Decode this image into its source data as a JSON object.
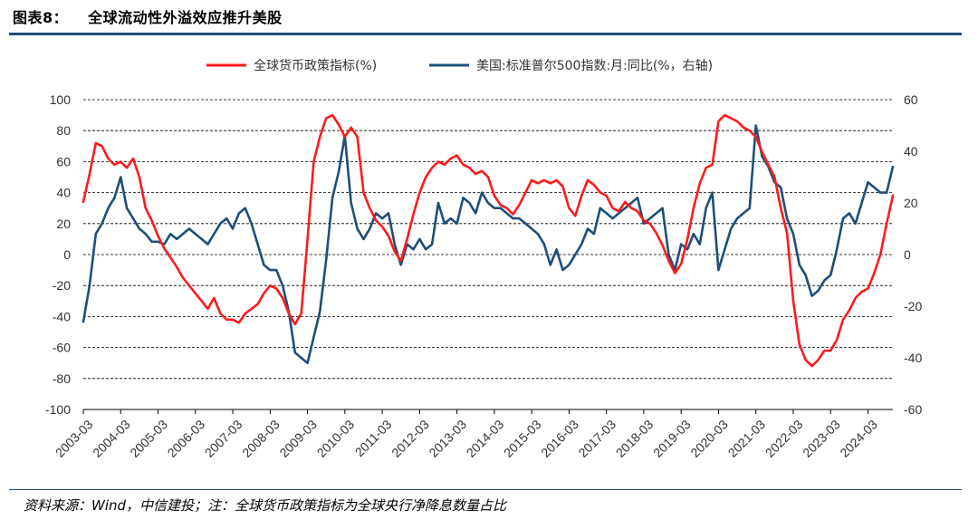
{
  "figure": {
    "number": "图表8：",
    "title": "全球流动性外溢效应推升美股",
    "source": "资料来源：Wind，中信建投；注：全球货币政策指标为全球央行净降息数量占比"
  },
  "chart_data": {
    "type": "line",
    "x_ticks": [
      "2003-03",
      "2004-03",
      "2005-03",
      "2006-03",
      "2007-03",
      "2008-03",
      "2009-03",
      "2010-03",
      "2011-03",
      "2012-03",
      "2013-03",
      "2014-03",
      "2015-03",
      "2016-03",
      "2017-03",
      "2018-03",
      "2019-03",
      "2020-03",
      "2021-03",
      "2022-03",
      "2023-03",
      "2024-03"
    ],
    "x_range": [
      "2003-03",
      "2024-11"
    ],
    "y_left": {
      "range": [
        -100,
        100
      ],
      "ticks": [
        100,
        80,
        60,
        40,
        20,
        0,
        -20,
        -40,
        -60,
        -80,
        -100
      ]
    },
    "y_right": {
      "range": [
        -60,
        60
      ],
      "ticks": [
        60,
        40,
        20,
        0,
        -20,
        -40,
        -60
      ]
    },
    "grid": "horizontal-dashed",
    "legend_position": "top",
    "series": [
      {
        "name": "全球货币政策指标(%)",
        "axis": "left",
        "color": "#ff1a1a",
        "points": [
          [
            "2003-03",
            34
          ],
          [
            "2003-05",
            52
          ],
          [
            "2003-07",
            72
          ],
          [
            "2003-09",
            70
          ],
          [
            "2003-11",
            62
          ],
          [
            "2004-01",
            58
          ],
          [
            "2004-03",
            60
          ],
          [
            "2004-05",
            56
          ],
          [
            "2004-07",
            62
          ],
          [
            "2004-09",
            50
          ],
          [
            "2004-11",
            30
          ],
          [
            "2005-01",
            22
          ],
          [
            "2005-03",
            12
          ],
          [
            "2005-05",
            4
          ],
          [
            "2005-07",
            -2
          ],
          [
            "2005-09",
            -8
          ],
          [
            "2005-11",
            -15
          ],
          [
            "2006-01",
            -20
          ],
          [
            "2006-03",
            -25
          ],
          [
            "2006-05",
            -30
          ],
          [
            "2006-07",
            -35
          ],
          [
            "2006-09",
            -28
          ],
          [
            "2006-11",
            -38
          ],
          [
            "2007-01",
            -42
          ],
          [
            "2007-03",
            -42
          ],
          [
            "2007-05",
            -44
          ],
          [
            "2007-07",
            -38
          ],
          [
            "2007-09",
            -35
          ],
          [
            "2007-11",
            -32
          ],
          [
            "2008-01",
            -25
          ],
          [
            "2008-03",
            -20
          ],
          [
            "2008-05",
            -22
          ],
          [
            "2008-07",
            -28
          ],
          [
            "2008-09",
            -38
          ],
          [
            "2008-11",
            -45
          ],
          [
            "2009-01",
            -38
          ],
          [
            "2009-03",
            10
          ],
          [
            "2009-05",
            60
          ],
          [
            "2009-07",
            76
          ],
          [
            "2009-09",
            88
          ],
          [
            "2009-11",
            90
          ],
          [
            "2010-01",
            84
          ],
          [
            "2010-03",
            76
          ],
          [
            "2010-05",
            82
          ],
          [
            "2010-07",
            76
          ],
          [
            "2010-09",
            40
          ],
          [
            "2010-11",
            30
          ],
          [
            "2011-01",
            22
          ],
          [
            "2011-03",
            18
          ],
          [
            "2011-05",
            12
          ],
          [
            "2011-07",
            2
          ],
          [
            "2011-09",
            -4
          ],
          [
            "2011-11",
            10
          ],
          [
            "2012-01",
            26
          ],
          [
            "2012-03",
            40
          ],
          [
            "2012-05",
            50
          ],
          [
            "2012-07",
            56
          ],
          [
            "2012-09",
            60
          ],
          [
            "2012-11",
            58
          ],
          [
            "2013-01",
            62
          ],
          [
            "2013-03",
            64
          ],
          [
            "2013-05",
            58
          ],
          [
            "2013-07",
            56
          ],
          [
            "2013-09",
            52
          ],
          [
            "2013-11",
            54
          ],
          [
            "2014-01",
            50
          ],
          [
            "2014-03",
            38
          ],
          [
            "2014-05",
            32
          ],
          [
            "2014-07",
            30
          ],
          [
            "2014-09",
            26
          ],
          [
            "2014-11",
            32
          ],
          [
            "2015-01",
            40
          ],
          [
            "2015-03",
            48
          ],
          [
            "2015-05",
            46
          ],
          [
            "2015-07",
            48
          ],
          [
            "2015-09",
            46
          ],
          [
            "2015-11",
            48
          ],
          [
            "2016-01",
            44
          ],
          [
            "2016-03",
            30
          ],
          [
            "2016-05",
            25
          ],
          [
            "2016-07",
            38
          ],
          [
            "2016-09",
            48
          ],
          [
            "2016-11",
            45
          ],
          [
            "2017-01",
            40
          ],
          [
            "2017-03",
            38
          ],
          [
            "2017-05",
            30
          ],
          [
            "2017-07",
            28
          ],
          [
            "2017-09",
            34
          ],
          [
            "2017-11",
            30
          ],
          [
            "2018-01",
            28
          ],
          [
            "2018-03",
            22
          ],
          [
            "2018-05",
            20
          ],
          [
            "2018-07",
            14
          ],
          [
            "2018-09",
            6
          ],
          [
            "2018-11",
            -4
          ],
          [
            "2019-01",
            -12
          ],
          [
            "2019-03",
            -6
          ],
          [
            "2019-05",
            10
          ],
          [
            "2019-07",
            30
          ],
          [
            "2019-09",
            46
          ],
          [
            "2019-11",
            56
          ],
          [
            "2020-01",
            58
          ],
          [
            "2020-03",
            86
          ],
          [
            "2020-05",
            90
          ],
          [
            "2020-07",
            88
          ],
          [
            "2020-09",
            86
          ],
          [
            "2020-11",
            82
          ],
          [
            "2021-01",
            80
          ],
          [
            "2021-03",
            76
          ],
          [
            "2021-05",
            66
          ],
          [
            "2021-07",
            58
          ],
          [
            "2021-09",
            50
          ],
          [
            "2021-11",
            30
          ],
          [
            "2022-01",
            14
          ],
          [
            "2022-03",
            -30
          ],
          [
            "2022-05",
            -58
          ],
          [
            "2022-07",
            -68
          ],
          [
            "2022-09",
            -72
          ],
          [
            "2022-11",
            -68
          ],
          [
            "2023-01",
            -62
          ],
          [
            "2023-03",
            -62
          ],
          [
            "2023-05",
            -55
          ],
          [
            "2023-07",
            -42
          ],
          [
            "2023-09",
            -36
          ],
          [
            "2023-11",
            -28
          ],
          [
            "2024-01",
            -24
          ],
          [
            "2024-03",
            -22
          ],
          [
            "2024-05",
            -12
          ],
          [
            "2024-07",
            0
          ],
          [
            "2024-09",
            20
          ],
          [
            "2024-11",
            38
          ]
        ]
      },
      {
        "name": "美国:标准普尔500指数:月:同比(%，右轴)",
        "axis": "right",
        "color": "#1f4e79",
        "points": [
          [
            "2003-03",
            -26
          ],
          [
            "2003-05",
            -12
          ],
          [
            "2003-07",
            8
          ],
          [
            "2003-09",
            12
          ],
          [
            "2003-11",
            18
          ],
          [
            "2004-01",
            22
          ],
          [
            "2004-03",
            30
          ],
          [
            "2004-05",
            18
          ],
          [
            "2004-07",
            14
          ],
          [
            "2004-09",
            10
          ],
          [
            "2004-11",
            8
          ],
          [
            "2005-01",
            5
          ],
          [
            "2005-03",
            5
          ],
          [
            "2005-05",
            4
          ],
          [
            "2005-07",
            8
          ],
          [
            "2005-09",
            6
          ],
          [
            "2005-11",
            8
          ],
          [
            "2006-01",
            10
          ],
          [
            "2006-03",
            8
          ],
          [
            "2006-05",
            6
          ],
          [
            "2006-07",
            4
          ],
          [
            "2006-09",
            8
          ],
          [
            "2006-11",
            12
          ],
          [
            "2007-01",
            14
          ],
          [
            "2007-03",
            10
          ],
          [
            "2007-05",
            16
          ],
          [
            "2007-07",
            18
          ],
          [
            "2007-09",
            12
          ],
          [
            "2007-11",
            4
          ],
          [
            "2008-01",
            -4
          ],
          [
            "2008-03",
            -6
          ],
          [
            "2008-05",
            -6
          ],
          [
            "2008-07",
            -12
          ],
          [
            "2008-09",
            -22
          ],
          [
            "2008-11",
            -38
          ],
          [
            "2009-01",
            -40
          ],
          [
            "2009-03",
            -42
          ],
          [
            "2009-05",
            -32
          ],
          [
            "2009-07",
            -22
          ],
          [
            "2009-09",
            -2
          ],
          [
            "2009-11",
            22
          ],
          [
            "2010-01",
            32
          ],
          [
            "2010-03",
            46
          ],
          [
            "2010-05",
            20
          ],
          [
            "2010-07",
            10
          ],
          [
            "2010-09",
            6
          ],
          [
            "2010-11",
            10
          ],
          [
            "2011-01",
            16
          ],
          [
            "2011-03",
            14
          ],
          [
            "2011-05",
            16
          ],
          [
            "2011-07",
            4
          ],
          [
            "2011-09",
            -4
          ],
          [
            "2011-11",
            4
          ],
          [
            "2012-01",
            2
          ],
          [
            "2012-03",
            6
          ],
          [
            "2012-05",
            2
          ],
          [
            "2012-07",
            4
          ],
          [
            "2012-09",
            20
          ],
          [
            "2012-11",
            12
          ],
          [
            "2013-01",
            14
          ],
          [
            "2013-03",
            12
          ],
          [
            "2013-05",
            22
          ],
          [
            "2013-07",
            20
          ],
          [
            "2013-09",
            16
          ],
          [
            "2013-11",
            24
          ],
          [
            "2014-01",
            20
          ],
          [
            "2014-03",
            18
          ],
          [
            "2014-05",
            18
          ],
          [
            "2014-07",
            16
          ],
          [
            "2014-09",
            14
          ],
          [
            "2014-11",
            14
          ],
          [
            "2015-01",
            12
          ],
          [
            "2015-03",
            10
          ],
          [
            "2015-05",
            8
          ],
          [
            "2015-07",
            4
          ],
          [
            "2015-09",
            -4
          ],
          [
            "2015-11",
            2
          ],
          [
            "2016-01",
            -6
          ],
          [
            "2016-03",
            -4
          ],
          [
            "2016-05",
            0
          ],
          [
            "2016-07",
            4
          ],
          [
            "2016-09",
            10
          ],
          [
            "2016-11",
            8
          ],
          [
            "2017-01",
            18
          ],
          [
            "2017-03",
            16
          ],
          [
            "2017-05",
            14
          ],
          [
            "2017-07",
            16
          ],
          [
            "2017-09",
            18
          ],
          [
            "2017-11",
            20
          ],
          [
            "2018-01",
            22
          ],
          [
            "2018-03",
            12
          ],
          [
            "2018-05",
            14
          ],
          [
            "2018-07",
            16
          ],
          [
            "2018-09",
            18
          ],
          [
            "2018-11",
            0
          ],
          [
            "2019-01",
            -6
          ],
          [
            "2019-03",
            4
          ],
          [
            "2019-05",
            2
          ],
          [
            "2019-07",
            8
          ],
          [
            "2019-09",
            4
          ],
          [
            "2019-11",
            18
          ],
          [
            "2020-01",
            24
          ],
          [
            "2020-03",
            -6
          ],
          [
            "2020-05",
            2
          ],
          [
            "2020-07",
            10
          ],
          [
            "2020-09",
            14
          ],
          [
            "2020-11",
            16
          ],
          [
            "2021-01",
            18
          ],
          [
            "2021-03",
            50
          ],
          [
            "2021-05",
            38
          ],
          [
            "2021-07",
            34
          ],
          [
            "2021-09",
            28
          ],
          [
            "2021-11",
            26
          ],
          [
            "2022-01",
            14
          ],
          [
            "2022-03",
            8
          ],
          [
            "2022-05",
            -4
          ],
          [
            "2022-07",
            -8
          ],
          [
            "2022-09",
            -16
          ],
          [
            "2022-11",
            -14
          ],
          [
            "2023-01",
            -10
          ],
          [
            "2023-03",
            -8
          ],
          [
            "2023-05",
            2
          ],
          [
            "2023-07",
            14
          ],
          [
            "2023-09",
            16
          ],
          [
            "2023-11",
            12
          ],
          [
            "2024-01",
            20
          ],
          [
            "2024-03",
            28
          ],
          [
            "2024-05",
            26
          ],
          [
            "2024-07",
            24
          ],
          [
            "2024-09",
            24
          ],
          [
            "2024-11",
            34
          ]
        ]
      }
    ]
  }
}
